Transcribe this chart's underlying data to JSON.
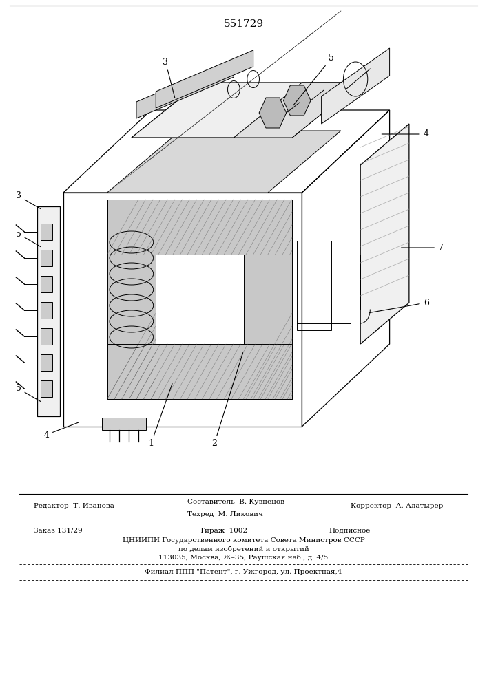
{
  "patent_number": "551729",
  "background_color": "#ffffff",
  "title_fontsize": 11,
  "body_fontsize": 7.5,
  "footer": {
    "editor": "Редактор  Т. Иванова",
    "sostavitel": "Составитель  В. Кузнецов",
    "tehred": "Техред  М. Ликович",
    "korrektor": "Корректор  А. Алатырер",
    "zakaz": "Заказ 131/29",
    "tirazh": "Тираж  1002",
    "podpisnoe": "Подписное",
    "tsniip1": "ЦНИИПИ Государственного комитета Совета Министров СССР",
    "tsniip2": "по делам изобретений и открытий",
    "tsniip3": "113035, Москва, Ж–35, Раушская наб., д. 4/5",
    "filial": "Филиал ППП \"Патент\", г. Ужгород, ул. Проектная,4"
  }
}
